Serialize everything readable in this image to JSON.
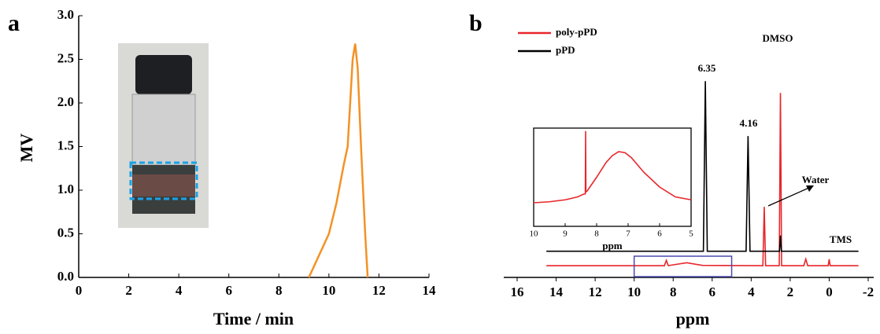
{
  "chart_data": [
    {
      "type": "line",
      "panel": "a",
      "xlabel": "Time / min",
      "ylabel": "MV",
      "x": [
        9.2,
        9.6,
        10,
        10.3,
        10.6,
        10.75,
        10.85,
        10.95,
        11.05,
        11.15,
        11.3,
        11.45,
        11.55
      ],
      "values": [
        0,
        0.25,
        0.5,
        0.85,
        1.3,
        1.5,
        2.0,
        2.5,
        2.68,
        2.4,
        1.4,
        0.5,
        0
      ],
      "color": "#f39224",
      "xlim": [
        0,
        14
      ],
      "xticks": [
        0,
        2,
        4,
        6,
        8,
        10,
        12,
        14
      ],
      "ylim": [
        0,
        3
      ],
      "yticks": [
        {
          "value": 0,
          "label": "0.0"
        },
        0.5,
        {
          "value": 1,
          "label": "1.0"
        },
        1.5,
        {
          "value": 2,
          "label": "2.0"
        },
        2.5,
        {
          "value": 3,
          "label": "3.0"
        }
      ]
    },
    {
      "type": "line",
      "panel": "b",
      "xlabel": "ppm",
      "series": [
        {
          "name": "poly-pPD",
          "color": "#e8262b",
          "x": [
            14.5,
            8.45,
            8.35,
            8.25,
            8.0,
            7.3,
            6.5,
            3.4,
            3.33,
            3.26,
            2.56,
            2.5,
            2.44,
            1.3,
            1.2,
            1.1,
            0.05,
            0,
            -0.05,
            -1.5
          ],
          "values": [
            4.5,
            4.5,
            6.5,
            4.5,
            4.8,
            5.6,
            4.6,
            4.5,
            27,
            4.5,
            4.5,
            70.5,
            4.5,
            4.5,
            7,
            4.5,
            4.5,
            7,
            4.5,
            4.5
          ]
        },
        {
          "name": "pPD",
          "color": "#000000",
          "x": [
            14.5,
            6.45,
            6.35,
            6.25,
            4.26,
            4.16,
            4.06,
            2.55,
            2.5,
            2.45,
            -1.5
          ],
          "values": [
            10,
            10,
            75,
            10,
            10,
            54,
            10,
            10,
            16,
            10,
            10
          ]
        }
      ],
      "annotations": [
        "6.35",
        "4.16",
        "DMSO",
        "Water",
        "TMS"
      ],
      "xlim": [
        16,
        -2
      ],
      "xticks": [
        16,
        14,
        12,
        10,
        8,
        6,
        4,
        2,
        0,
        -2
      ],
      "ylim": [
        0,
        100
      ],
      "inset": {
        "xlabel": "ppm",
        "xlim": [
          10,
          5
        ],
        "xticks": [
          10,
          9,
          8,
          7,
          6,
          5
        ],
        "ylim": [
          0,
          100
        ],
        "x": [
          10,
          9.5,
          9,
          8.6,
          8.4,
          8.36,
          8.35,
          8.34,
          8.3,
          8.0,
          7.7,
          7.5,
          7.3,
          7.1,
          6.9,
          6.5,
          6,
          5.5,
          5
        ],
        "values": [
          24,
          25,
          27,
          30,
          33,
          33,
          97,
          35,
          36,
          50,
          65,
          72,
          76,
          75,
          70,
          55,
          40,
          30,
          27
        ],
        "color": "#e8262b"
      }
    }
  ]
}
